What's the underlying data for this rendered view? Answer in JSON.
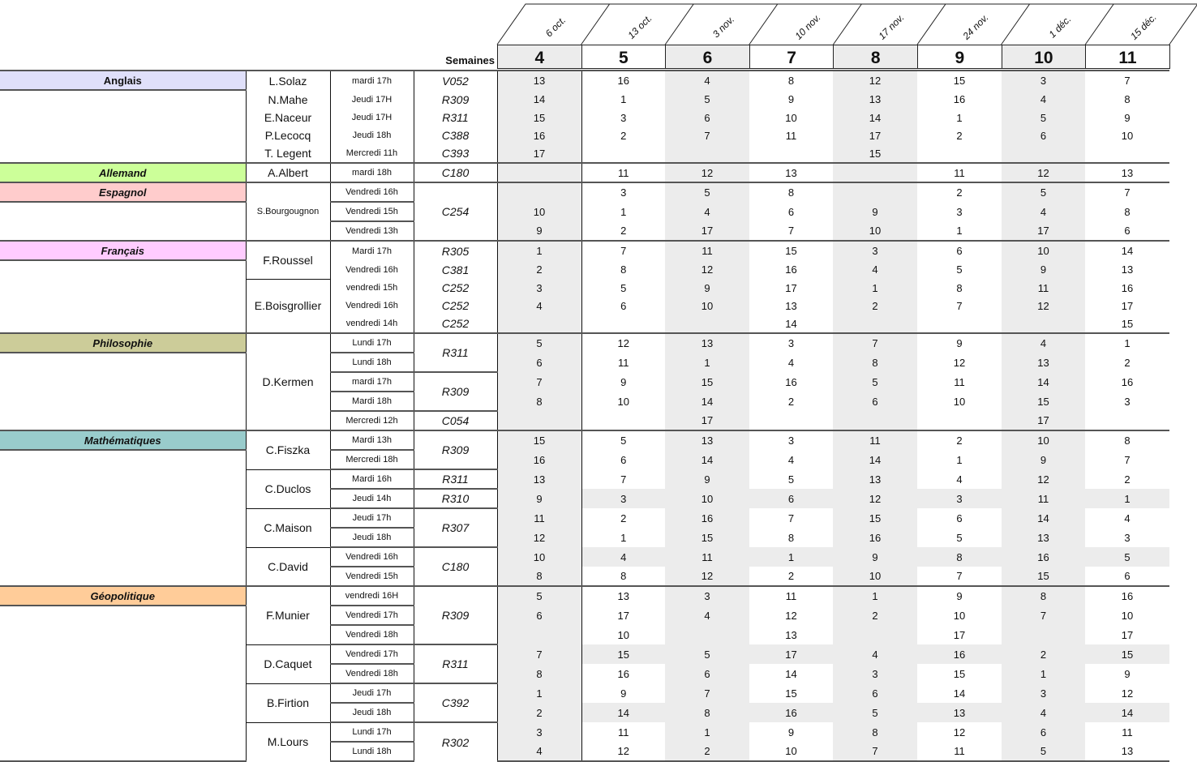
{
  "header": {
    "semaines_label": "Semaines",
    "weeks": [
      {
        "date": "6 oct.",
        "number": "4"
      },
      {
        "date": "13 oct.",
        "number": "5"
      },
      {
        "date": "3 nov.",
        "number": "6"
      },
      {
        "date": "10 nov.",
        "number": "7"
      },
      {
        "date": "17 nov.",
        "number": "8"
      },
      {
        "date": "24 nov.",
        "number": "9"
      },
      {
        "date": "1 déc.",
        "number": "10"
      },
      {
        "date": "15 déc.",
        "number": "11"
      }
    ]
  },
  "colors": {
    "shade": "#ececec"
  },
  "groups": [
    {
      "subject": "Anglais",
      "color": "#e0e0fa",
      "italic": false,
      "teacher_dividers": false,
      "time_dividers": false,
      "room_dividers": false,
      "teachers": [
        {
          "name": "L.Solaz",
          "span": 1
        },
        {
          "name": "N.Mahe",
          "span": 1
        },
        {
          "name": "E.Naceur",
          "span": 1
        },
        {
          "name": "P.Lecocq",
          "span": 1
        },
        {
          "name": "T. Legent",
          "span": 1
        }
      ],
      "times": [
        "mardi 17h",
        "Jeudi 17H",
        "Jeudi 17H",
        "Jeudi 18h",
        "Mercredi 11h"
      ],
      "rooms": [
        {
          "room": "V052",
          "span": 1
        },
        {
          "room": "R309",
          "span": 1
        },
        {
          "room": "R311",
          "span": 1
        },
        {
          "room": "C388",
          "span": 1
        },
        {
          "room": "C393",
          "span": 1
        }
      ],
      "shaded_rows": [],
      "values": [
        [
          "13",
          "16",
          "4",
          "8",
          "12",
          "15",
          "3",
          "7"
        ],
        [
          "14",
          "1",
          "5",
          "9",
          "13",
          "16",
          "4",
          "8"
        ],
        [
          "15",
          "3",
          "6",
          "10",
          "14",
          "1",
          "5",
          "9"
        ],
        [
          "16",
          "2",
          "7",
          "11",
          "17",
          "2",
          "6",
          "10"
        ],
        [
          "17",
          "",
          "",
          "",
          "15",
          "",
          "",
          ""
        ]
      ]
    },
    {
      "subject": "Allemand",
      "color": "#ccff99",
      "italic": true,
      "teacher_dividers": true,
      "time_dividers": true,
      "room_dividers": true,
      "teachers": [
        {
          "name": "A.Albert",
          "span": 1
        }
      ],
      "times": [
        "mardi 18h"
      ],
      "rooms": [
        {
          "room": "C180",
          "span": 1
        }
      ],
      "shaded_rows": [],
      "values": [
        [
          "",
          "11",
          "12",
          "13",
          "",
          "11",
          "12",
          "13"
        ]
      ]
    },
    {
      "subject": "Espagnol",
      "color": "#ffcccc",
      "italic": true,
      "teacher_dividers": true,
      "time_dividers": true,
      "room_dividers": true,
      "teachers": [
        {
          "name": "S.Bourgougnon",
          "span": 3,
          "small": true
        }
      ],
      "times": [
        "Vendredi 16h",
        "Vendredi 15h",
        "Vendredi 13h"
      ],
      "rooms": [
        {
          "room": "C254",
          "span": 3
        }
      ],
      "shaded_rows": [],
      "values": [
        [
          "",
          "3",
          "5",
          "8",
          "",
          "2",
          "5",
          "7"
        ],
        [
          "10",
          "1",
          "4",
          "6",
          "9",
          "3",
          "4",
          "8"
        ],
        [
          "9",
          "2",
          "17",
          "7",
          "10",
          "1",
          "17",
          "6"
        ]
      ]
    },
    {
      "subject": "Français",
      "color": "#ffccff",
      "italic": true,
      "teacher_dividers": true,
      "time_dividers": false,
      "room_dividers": false,
      "teachers": [
        {
          "name": "F.Roussel",
          "span": 2
        },
        {
          "name": "E.Boisgrollier",
          "span": 3
        }
      ],
      "times": [
        "Mardi 17h",
        "Vendredi 16h",
        "vendredi 15h",
        "Vendredi 16h",
        "vendredi 14h"
      ],
      "rooms": [
        {
          "room": "R305",
          "span": 1
        },
        {
          "room": "C381",
          "span": 1
        },
        {
          "room": "C252",
          "span": 1
        },
        {
          "room": "C252",
          "span": 1
        },
        {
          "room": "C252",
          "span": 1
        }
      ],
      "shaded_rows": [],
      "values": [
        [
          "1",
          "7",
          "11",
          "15",
          "3",
          "6",
          "10",
          "14"
        ],
        [
          "2",
          "8",
          "12",
          "16",
          "4",
          "5",
          "9",
          "13"
        ],
        [
          "3",
          "5",
          "9",
          "17",
          "1",
          "8",
          "11",
          "16"
        ],
        [
          "4",
          "6",
          "10",
          "13",
          "2",
          "7",
          "12",
          "17"
        ],
        [
          "",
          "",
          "",
          "14",
          "",
          "",
          "",
          "15"
        ]
      ]
    },
    {
      "subject": "Philosophie",
      "color": "#cccc99",
      "italic": true,
      "teacher_dividers": true,
      "time_dividers": true,
      "room_dividers": true,
      "teachers": [
        {
          "name": "D.Kermen",
          "span": 5
        }
      ],
      "times": [
        "Lundi 17h",
        "Lundi 18h",
        "mardi 17h",
        "Mardi 18h",
        "Mercredi 12h"
      ],
      "rooms": [
        {
          "room": "R311",
          "span": 2
        },
        {
          "room": "R309",
          "span": 2
        },
        {
          "room": "C054",
          "span": 1
        }
      ],
      "shaded_rows": [],
      "values": [
        [
          "5",
          "12",
          "13",
          "3",
          "7",
          "9",
          "4",
          "1"
        ],
        [
          "6",
          "11",
          "1",
          "4",
          "8",
          "12",
          "13",
          "2"
        ],
        [
          "7",
          "9",
          "15",
          "16",
          "5",
          "11",
          "14",
          "16"
        ],
        [
          "8",
          "10",
          "14",
          "2",
          "6",
          "10",
          "15",
          "3"
        ],
        [
          "",
          "",
          "17",
          "",
          "",
          "",
          "17",
          ""
        ]
      ]
    },
    {
      "subject": "Mathématiques",
      "color": "#99cccc",
      "italic": true,
      "teacher_dividers": true,
      "time_dividers": true,
      "room_dividers": true,
      "teachers": [
        {
          "name": "C.Fiszka",
          "span": 2
        },
        {
          "name": "C.Duclos",
          "span": 2
        },
        {
          "name": "C.Maison",
          "span": 2
        },
        {
          "name": "C.David",
          "span": 2
        }
      ],
      "times": [
        "Mardi 13h",
        "Mercredi 18h",
        "Mardi 16h",
        "Jeudi 14h",
        "Jeudi 17h",
        "Jeudi 18h",
        "Vendredi 16h",
        "Vendredi 15h"
      ],
      "rooms": [
        {
          "room": "R309",
          "span": 2
        },
        {
          "room": "R311",
          "span": 1
        },
        {
          "room": "R310",
          "span": 1
        },
        {
          "room": "R307",
          "span": 2
        },
        {
          "room": "C180",
          "span": 2
        }
      ],
      "shaded_rows": [
        3,
        6
      ],
      "values": [
        [
          "15",
          "5",
          "13",
          "3",
          "11",
          "2",
          "10",
          "8"
        ],
        [
          "16",
          "6",
          "14",
          "4",
          "14",
          "1",
          "9",
          "7"
        ],
        [
          "13",
          "7",
          "9",
          "5",
          "13",
          "4",
          "12",
          "2"
        ],
        [
          "9",
          "3",
          "10",
          "6",
          "12",
          "3",
          "11",
          "1"
        ],
        [
          "11",
          "2",
          "16",
          "7",
          "15",
          "6",
          "14",
          "4"
        ],
        [
          "12",
          "1",
          "15",
          "8",
          "16",
          "5",
          "13",
          "3"
        ],
        [
          "10",
          "4",
          "11",
          "1",
          "9",
          "8",
          "16",
          "5"
        ],
        [
          "8",
          "8",
          "12",
          "2",
          "10",
          "7",
          "15",
          "6"
        ]
      ]
    },
    {
      "subject": "Géopolitique",
      "color": "#ffcc99",
      "italic": true,
      "teacher_dividers": true,
      "time_dividers": true,
      "room_dividers": true,
      "teachers": [
        {
          "name": "F.Munier",
          "span": 3
        },
        {
          "name": "D.Caquet",
          "span": 2
        },
        {
          "name": "B.Firtion",
          "span": 2
        },
        {
          "name": "M.Lours",
          "span": 2
        }
      ],
      "times": [
        "vendredi 16H",
        "Vendredi 17h",
        "Vendredi 18h",
        "Vendredi 17h",
        "Vendredi 18h",
        "Jeudi 17h",
        "Jeudi 18h",
        "Lundi 17h",
        "Lundi 18h"
      ],
      "rooms": [
        {
          "room": "R309",
          "span": 3
        },
        {
          "room": "R311",
          "span": 2
        },
        {
          "room": "C392",
          "span": 2
        },
        {
          "room": "R302",
          "span": 2
        }
      ],
      "shaded_rows": [
        3,
        6
      ],
      "values": [
        [
          "5",
          "13",
          "3",
          "11",
          "1",
          "9",
          "8",
          "16"
        ],
        [
          "6",
          "17",
          "4",
          "12",
          "2",
          "10",
          "7",
          "10"
        ],
        [
          "",
          "10",
          "",
          "13",
          "",
          "17",
          "",
          "17"
        ],
        [
          "7",
          "15",
          "5",
          "17",
          "4",
          "16",
          "2",
          "15"
        ],
        [
          "8",
          "16",
          "6",
          "14",
          "3",
          "15",
          "1",
          "9"
        ],
        [
          "1",
          "9",
          "7",
          "15",
          "6",
          "14",
          "3",
          "12"
        ],
        [
          "2",
          "14",
          "8",
          "16",
          "5",
          "13",
          "4",
          "14"
        ],
        [
          "3",
          "11",
          "1",
          "9",
          "8",
          "12",
          "6",
          "11"
        ],
        [
          "4",
          "12",
          "2",
          "10",
          "7",
          "11",
          "5",
          "13"
        ]
      ]
    }
  ]
}
